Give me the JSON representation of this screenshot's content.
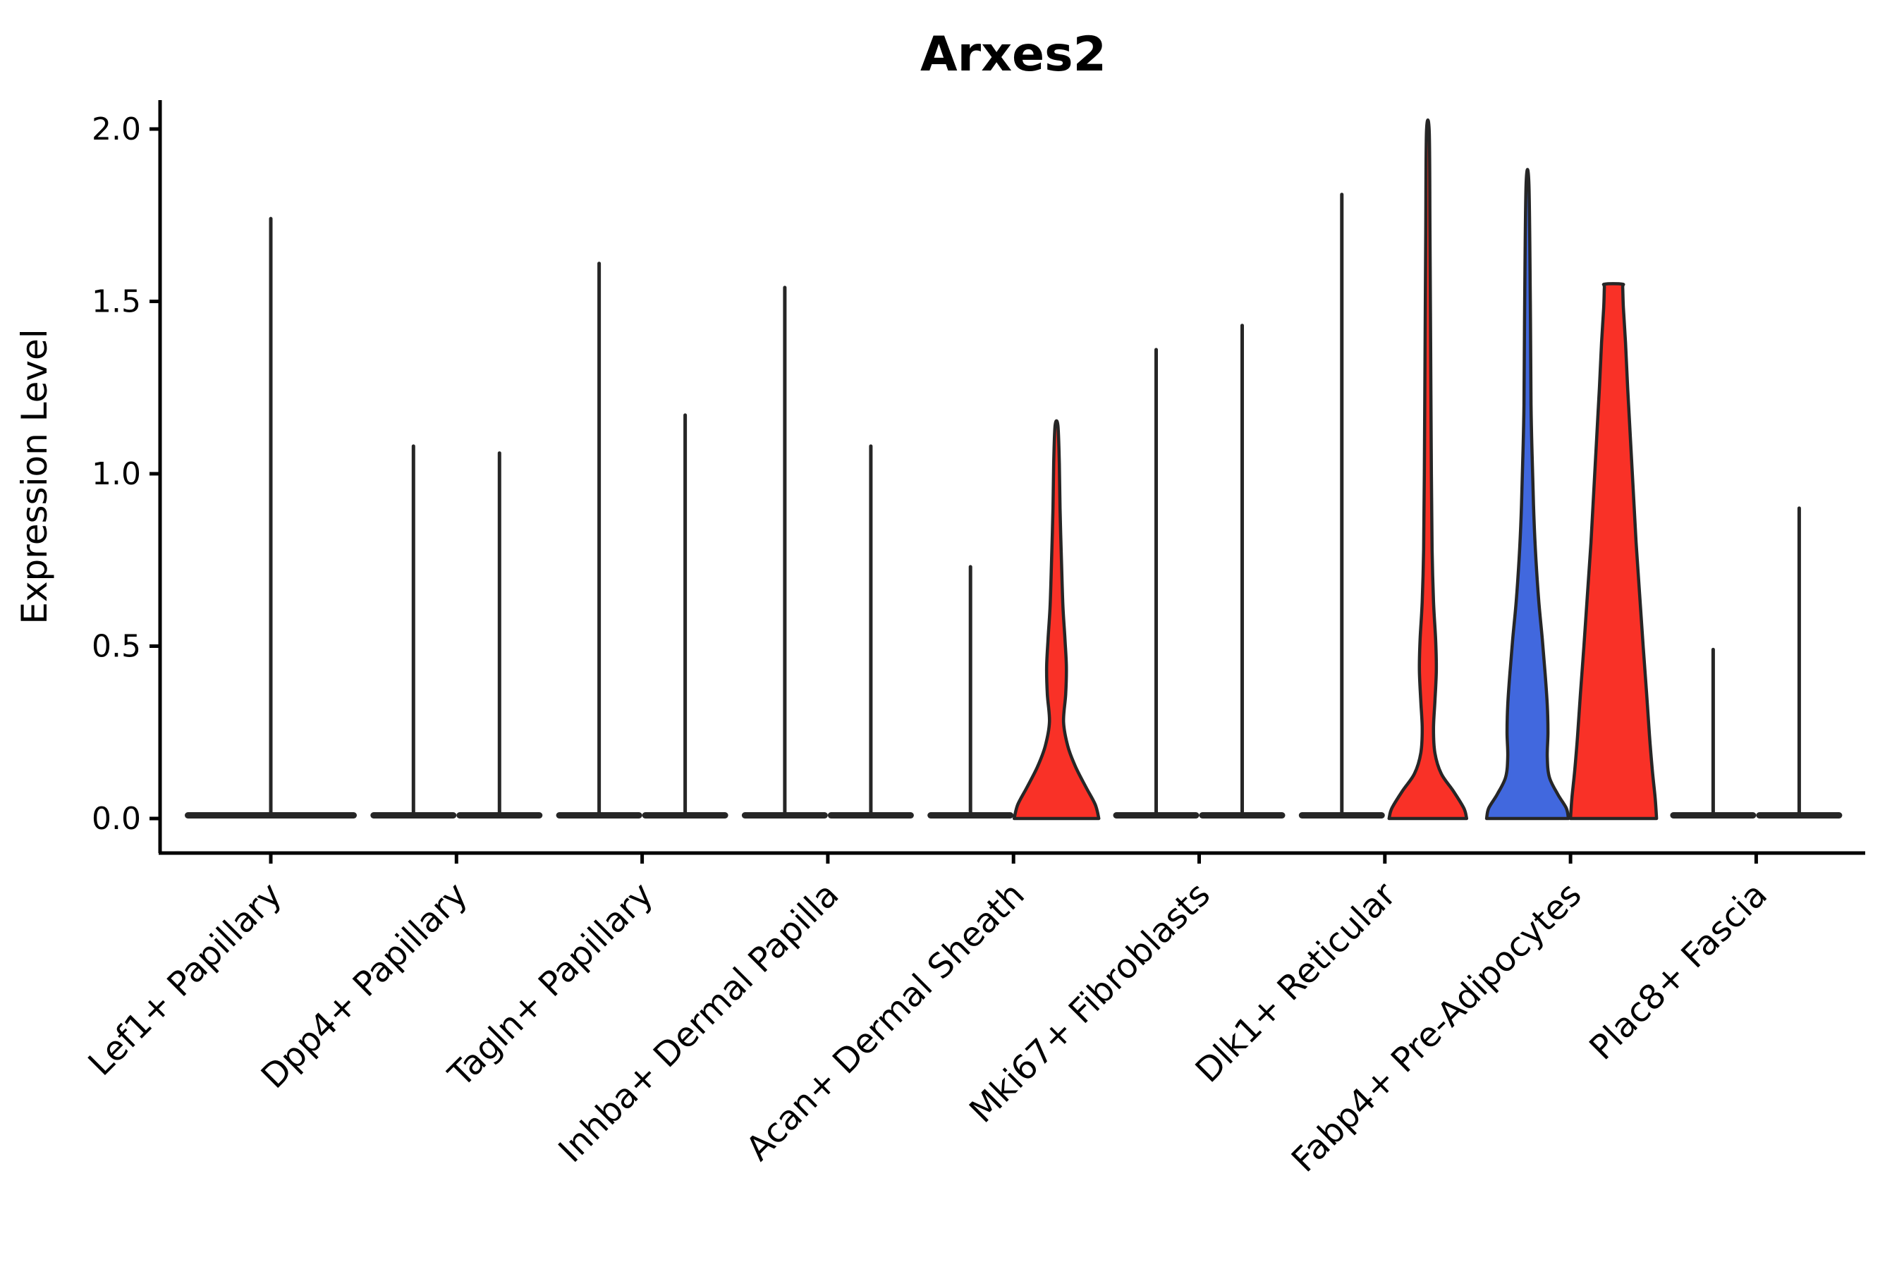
{
  "chart_data": {
    "type": "violin",
    "title": "Arxes2",
    "ylabel": "Expression Level",
    "xlabel": "",
    "ylim": [
      0,
      2.08
    ],
    "grid": false,
    "legend": "none",
    "yticks": [
      "0.0",
      "0.5",
      "1.0",
      "1.5",
      "2.0"
    ],
    "categories": [
      "Lef1+ Papillary",
      "Dpp4+ Papillary",
      "Tagln+ Papillary",
      "Inhba+ Dermal Papilla",
      "Acan+ Dermal Sheath",
      "Mki67+ Fibroblasts",
      "Dlk1+ Reticular",
      "Fabp4+ Pre-Adipocytes",
      "Plac8+ Fascia"
    ],
    "colors": {
      "red_fill": "#f93127",
      "blue_fill": "#4168de",
      "outline": "#262626",
      "axis": "#000000",
      "background": "#ffffff"
    },
    "violins": [
      {
        "group": 0,
        "pos": 0,
        "style": "line",
        "max_expression": 1.74,
        "base_halfwidth_units": 2
      },
      {
        "group": 1,
        "pos": -1,
        "style": "line",
        "max_expression": 1.08,
        "base_halfwidth_units": 1
      },
      {
        "group": 1,
        "pos": 1,
        "style": "line",
        "max_expression": 1.06,
        "base_halfwidth_units": 1
      },
      {
        "group": 2,
        "pos": -1,
        "style": "line",
        "max_expression": 1.61,
        "base_halfwidth_units": 1
      },
      {
        "group": 2,
        "pos": 1,
        "style": "line",
        "max_expression": 1.17,
        "base_halfwidth_units": 1
      },
      {
        "group": 3,
        "pos": -1,
        "style": "line",
        "max_expression": 1.54,
        "base_halfwidth_units": 1
      },
      {
        "group": 3,
        "pos": 1,
        "style": "line",
        "max_expression": 1.08,
        "base_halfwidth_units": 1
      },
      {
        "group": 4,
        "pos": -1,
        "style": "line",
        "max_expression": 0.73,
        "base_halfwidth_units": 1
      },
      {
        "group": 4,
        "pos": 1,
        "style": "filled",
        "max_expression": 1.14,
        "color": "red_fill",
        "profile": [
          [
            0,
            60
          ],
          [
            0.04,
            55
          ],
          [
            0.09,
            42
          ],
          [
            0.15,
            27
          ],
          [
            0.21,
            16
          ],
          [
            0.28,
            10
          ],
          [
            0.36,
            13
          ],
          [
            0.44,
            14
          ],
          [
            0.52,
            12
          ],
          [
            0.62,
            9
          ],
          [
            0.75,
            7
          ],
          [
            0.9,
            5
          ],
          [
            1.03,
            4
          ],
          [
            1.14,
            2
          ]
        ]
      },
      {
        "group": 5,
        "pos": -1,
        "style": "line",
        "max_expression": 1.36,
        "base_halfwidth_units": 1
      },
      {
        "group": 5,
        "pos": 1,
        "style": "line",
        "max_expression": 1.43,
        "base_halfwidth_units": 1
      },
      {
        "group": 6,
        "pos": -1,
        "style": "line",
        "max_expression": 1.81,
        "base_halfwidth_units": 1
      },
      {
        "group": 6,
        "pos": 1,
        "style": "filled",
        "max_expression": 1.99,
        "color": "red_fill",
        "profile": [
          [
            0,
            55
          ],
          [
            0.03,
            51
          ],
          [
            0.08,
            36
          ],
          [
            0.13,
            19
          ],
          [
            0.19,
            10
          ],
          [
            0.26,
            8
          ],
          [
            0.34,
            10
          ],
          [
            0.43,
            12
          ],
          [
            0.52,
            11
          ],
          [
            0.63,
            8
          ],
          [
            0.78,
            6
          ],
          [
            1.0,
            5
          ],
          [
            1.35,
            4
          ],
          [
            1.7,
            3
          ],
          [
            1.99,
            2
          ]
        ]
      },
      {
        "group": 7,
        "pos": -1,
        "style": "filled",
        "max_expression": 1.84,
        "color": "blue_fill",
        "profile": [
          [
            0,
            58
          ],
          [
            0.03,
            55
          ],
          [
            0.07,
            43
          ],
          [
            0.12,
            31
          ],
          [
            0.18,
            28
          ],
          [
            0.25,
            29
          ],
          [
            0.33,
            28
          ],
          [
            0.42,
            25
          ],
          [
            0.52,
            21
          ],
          [
            0.63,
            16
          ],
          [
            0.75,
            12
          ],
          [
            0.88,
            9
          ],
          [
            1.02,
            7
          ],
          [
            1.2,
            5
          ],
          [
            1.5,
            4
          ],
          [
            1.84,
            2
          ]
        ]
      },
      {
        "group": 7,
        "pos": 1,
        "style": "filled",
        "max_expression": 1.55,
        "color": "red_fill",
        "flat_top": true,
        "profile": [
          [
            0,
            61
          ],
          [
            0.06,
            59
          ],
          [
            0.14,
            55
          ],
          [
            0.24,
            51
          ],
          [
            0.36,
            47
          ],
          [
            0.5,
            42
          ],
          [
            0.65,
            37
          ],
          [
            0.8,
            32
          ],
          [
            0.95,
            28
          ],
          [
            1.1,
            24
          ],
          [
            1.25,
            20
          ],
          [
            1.38,
            17
          ],
          [
            1.48,
            14
          ],
          [
            1.54,
            13
          ],
          [
            1.55,
            12
          ]
        ]
      },
      {
        "group": 8,
        "pos": -1,
        "style": "line",
        "max_expression": 0.49,
        "base_halfwidth_units": 1
      },
      {
        "group": 8,
        "pos": 1,
        "style": "line",
        "max_expression": 0.9,
        "base_halfwidth_units": 1
      }
    ]
  }
}
